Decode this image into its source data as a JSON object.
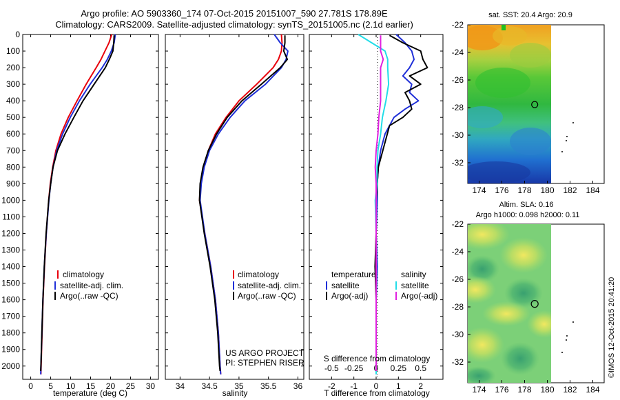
{
  "header": {
    "line1": "Argo profile: AO 5903360_174 07-Oct-2015 20151007_590 27.781S 178.89E",
    "line2": "Climatology: CARS2009. Satellite-adjusted climatology: synTS_20151005.nc (2.1d earlier)"
  },
  "colors": {
    "climatology": "#e8000b",
    "satellite": "#1f2fd8",
    "argo": "#000000",
    "sal_satellite": "#22dde8",
    "sal_argo": "#e020e0"
  },
  "credits": {
    "project": "US ARGO PROJECT",
    "pi": "PI: STEPHEN RISER",
    "imos": "©IMOS 12-Oct-2015 20:41:20"
  },
  "chart_data": [
    {
      "type": "line",
      "name": "temperature_profile",
      "xlabel": "temperature (deg C)",
      "ylabel": "",
      "xlim": [
        -2,
        32
      ],
      "ylim": [
        2080,
        0
      ],
      "xticks": [
        0,
        5,
        10,
        15,
        20,
        25,
        30
      ],
      "yticks": [
        0,
        100,
        200,
        300,
        400,
        500,
        600,
        700,
        800,
        900,
        1000,
        1100,
        1200,
        1300,
        1400,
        1500,
        1600,
        1700,
        1800,
        1900,
        2000
      ],
      "legend": [
        "climatology",
        "satellite-adj. clim.",
        "Argo(..raw -QC)"
      ],
      "series": [
        {
          "name": "climatology",
          "depth": [
            0,
            50,
            100,
            150,
            200,
            300,
            400,
            500,
            600,
            700,
            800,
            900,
            1000,
            1200,
            1400,
            1600,
            1800,
            2000,
            2050
          ],
          "values": [
            20.3,
            19.6,
            18.6,
            17.6,
            16.4,
            13.9,
            11.6,
            9.4,
            7.6,
            6.3,
            5.5,
            4.9,
            4.5,
            3.9,
            3.45,
            3.1,
            2.85,
            2.6,
            2.55
          ]
        },
        {
          "name": "satellite-adj. clim.",
          "depth": [
            0,
            50,
            100,
            150,
            200,
            300,
            400,
            500,
            600,
            700,
            800,
            900,
            1000,
            1200,
            1400,
            1600,
            1800,
            2000,
            2050
          ],
          "values": [
            21.2,
            20.9,
            20.2,
            19.2,
            17.9,
            14.9,
            12.2,
            9.9,
            8.0,
            6.5,
            5.6,
            5.0,
            4.55,
            3.9,
            3.4,
            3.05,
            2.8,
            2.55,
            2.5
          ]
        },
        {
          "name": "Argo(..raw -QC)",
          "depth": [
            5,
            50,
            100,
            150,
            200,
            300,
            400,
            500,
            600,
            700,
            800,
            900,
            1000,
            1200,
            1400,
            1600,
            1800,
            2000,
            2030
          ],
          "values": [
            20.9,
            20.8,
            20.6,
            19.7,
            18.7,
            15.9,
            13.1,
            10.8,
            8.6,
            6.7,
            5.6,
            5.0,
            4.5,
            3.85,
            3.4,
            3.05,
            2.8,
            2.55,
            2.5
          ]
        }
      ]
    },
    {
      "type": "line",
      "name": "salinity_profile",
      "xlabel": "salinity",
      "ylabel": "",
      "xlim": [
        33.75,
        36.1
      ],
      "ylim": [
        2080,
        0
      ],
      "xticks": [
        34,
        34.5,
        35,
        35.5,
        36
      ],
      "legend": [
        "climatology",
        "satellite-adj. clim.",
        "Argo(..raw -QC)"
      ],
      "series": [
        {
          "name": "climatology",
          "depth": [
            0,
            50,
            100,
            150,
            200,
            300,
            400,
            500,
            600,
            700,
            800,
            900,
            1000,
            1200,
            1400,
            1600,
            1800,
            2000,
            2050
          ],
          "values": [
            35.72,
            35.73,
            35.72,
            35.67,
            35.58,
            35.3,
            35.0,
            34.78,
            34.6,
            34.48,
            34.4,
            34.35,
            34.33,
            34.42,
            34.52,
            34.6,
            34.65,
            34.68,
            34.69
          ]
        },
        {
          "name": "satellite-adj. clim.",
          "depth": [
            0,
            50,
            100,
            150,
            200,
            300,
            400,
            500,
            600,
            700,
            800,
            900,
            1000,
            1200,
            1400,
            1600,
            1800,
            2000,
            2050
          ],
          "values": [
            35.6,
            35.7,
            35.83,
            35.8,
            35.72,
            35.45,
            35.1,
            34.85,
            34.65,
            34.5,
            34.41,
            34.36,
            34.34,
            34.42,
            34.52,
            34.6,
            34.65,
            34.68,
            34.69
          ]
        },
        {
          "name": "Argo(..raw -QC)",
          "depth": [
            5,
            50,
            100,
            150,
            200,
            300,
            400,
            500,
            600,
            700,
            800,
            900,
            1000,
            1200,
            1400,
            1600,
            1800,
            2000,
            2030
          ],
          "values": [
            35.78,
            35.78,
            35.76,
            35.82,
            35.7,
            35.38,
            35.05,
            34.8,
            34.62,
            34.48,
            34.39,
            34.34,
            34.33,
            34.41,
            34.51,
            34.59,
            34.64,
            34.67,
            34.68
          ]
        }
      ],
      "annotations": [
        "US ARGO PROJECT",
        "PI: STEPHEN RISER"
      ]
    },
    {
      "type": "line",
      "name": "difference_profile",
      "xlabel": "T difference from climatology",
      "xlabel2": "S difference from climatology",
      "xlim": [
        -3,
        3
      ],
      "ylim": [
        2080,
        0
      ],
      "xticks": [
        -2,
        -1,
        0,
        1,
        2
      ],
      "xticks_salinity": [
        -0.5,
        -0.25,
        0,
        0.25,
        0.5
      ],
      "legend": {
        "temperature_header": "temperature",
        "salinity_header": "salinity",
        "entries": [
          "satellite",
          "Argo(-adj)",
          "satellite",
          "Argo(-adj)"
        ]
      },
      "series": [
        {
          "name": "temperature satellite",
          "depth": [
            0,
            50,
            100,
            150,
            200,
            250,
            300,
            350,
            400,
            450,
            500,
            550,
            600,
            700,
            800,
            900,
            1000,
            1200,
            1400,
            1600,
            1800,
            2000,
            2050
          ],
          "values": [
            0.9,
            1.3,
            1.6,
            1.7,
            1.5,
            1.2,
            1.6,
            1.5,
            1.9,
            1.3,
            0.8,
            0.6,
            0.4,
            0.2,
            0.1,
            0.05,
            0.05,
            0.0,
            0.05,
            0.0,
            0.0,
            0.0,
            0.0
          ]
        },
        {
          "name": "temperature Argo(-adj)",
          "depth": [
            5,
            50,
            100,
            150,
            200,
            250,
            300,
            350,
            400,
            450,
            500,
            550,
            600,
            700,
            800,
            900,
            1000,
            1200,
            1400,
            1600,
            1800,
            2000,
            2030
          ],
          "values": [
            0.6,
            1.2,
            2.0,
            2.1,
            2.3,
            1.5,
            2.0,
            1.3,
            1.5,
            1.6,
            1.2,
            0.6,
            0.5,
            0.3,
            0.1,
            0.05,
            0.0,
            0.0,
            -0.05,
            0.0,
            0.0,
            0.0,
            0.0
          ]
        },
        {
          "name": "salinity satellite",
          "depth": [
            0,
            50,
            100,
            150,
            200,
            300,
            400,
            500,
            600,
            700,
            800,
            900,
            1000,
            1200,
            1400,
            1600,
            1800,
            2000,
            2050
          ],
          "values": [
            -0.2,
            -0.05,
            0.1,
            0.13,
            0.13,
            0.14,
            0.11,
            0.07,
            0.05,
            0.02,
            0.01,
            0.01,
            -0.01,
            0.0,
            0.0,
            0.0,
            0.0,
            0.0,
            0.0
          ]
        },
        {
          "name": "salinity Argo(-adj)",
          "depth": [
            5,
            50,
            100,
            150,
            200,
            300,
            400,
            500,
            600,
            700,
            800,
            900,
            1000,
            1200,
            1400,
            1600,
            1800,
            2000,
            2030
          ],
          "values": [
            0.05,
            0.05,
            0.05,
            0.08,
            0.05,
            0.05,
            0.05,
            0.03,
            0.02,
            0.0,
            -0.01,
            0.0,
            0.0,
            0.0,
            0.0,
            0.0,
            0.0,
            0.0,
            0.0
          ]
        }
      ]
    },
    {
      "type": "heatmap",
      "name": "sst_map",
      "title": "sat. SST: 20.4  Argo: 20.9",
      "xlim": [
        173,
        185
      ],
      "ylim": [
        -33.5,
        -22
      ],
      "xticks": [
        174,
        176,
        178,
        180,
        182,
        184
      ],
      "yticks": [
        -22,
        -24,
        -26,
        -28,
        -30,
        -32
      ],
      "float_position": [
        178.89,
        -27.781
      ]
    },
    {
      "type": "heatmap",
      "name": "sla_map",
      "title_line1": "Altim. SLA: 0.16",
      "title_line2": "Argo h1000: 0.098  h2000: 0.11",
      "xlim": [
        173,
        185
      ],
      "ylim": [
        -33.5,
        -22
      ],
      "xticks": [
        174,
        176,
        178,
        180,
        182,
        184
      ],
      "yticks": [
        -22,
        -24,
        -26,
        -28,
        -30,
        -32
      ],
      "float_position": [
        178.89,
        -27.781
      ]
    }
  ]
}
